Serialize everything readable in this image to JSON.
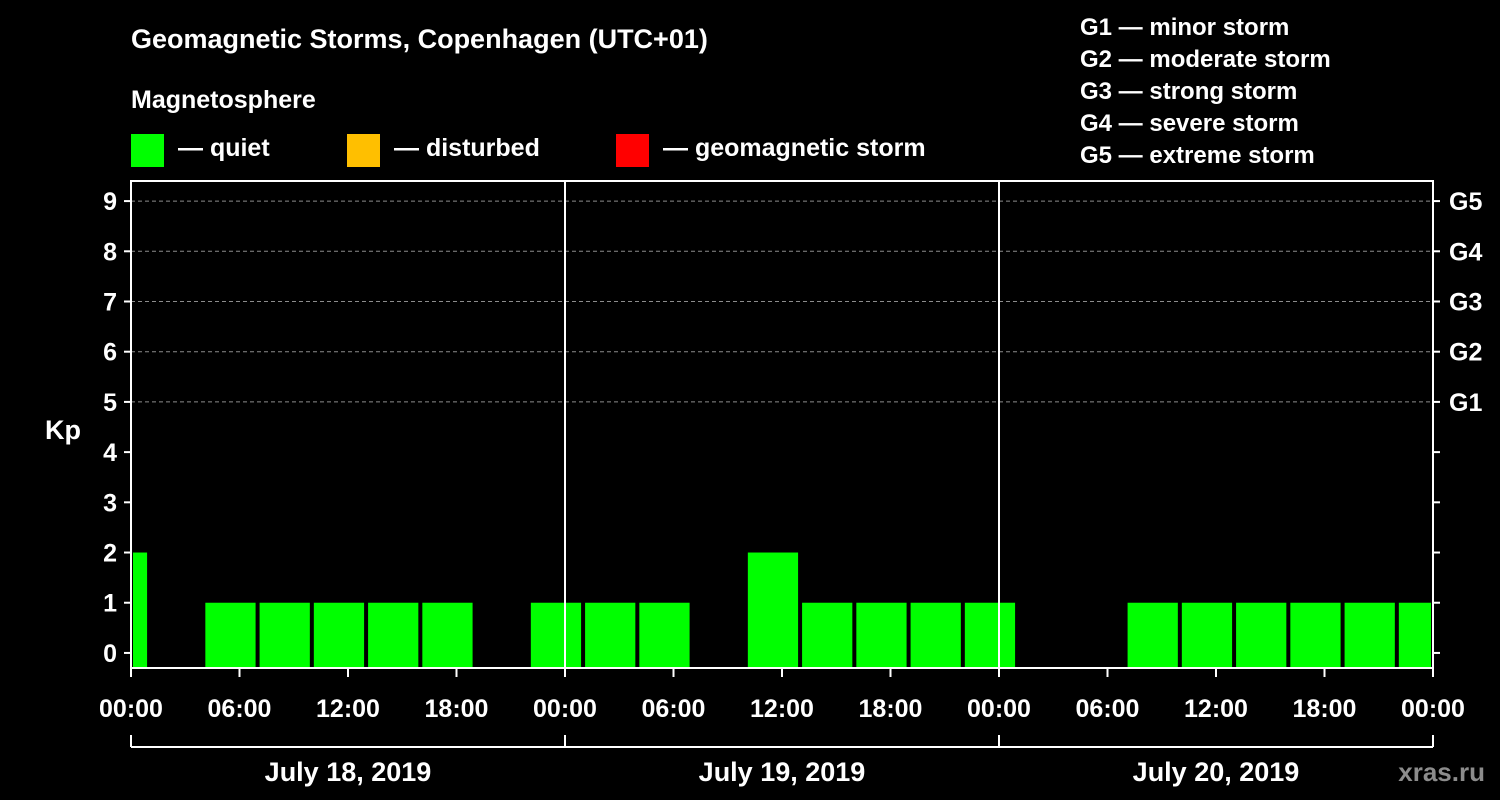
{
  "chart_data": {
    "type": "bar",
    "title": "Geomagnetic Storms, Copenhagen (UTC+01)",
    "ylabel": "Kp",
    "ylim": [
      -0.3,
      9.4
    ],
    "yticks": [
      "0",
      "1",
      "2",
      "3",
      "4",
      "5",
      "6",
      "7",
      "8",
      "9"
    ],
    "right_ticks": [
      {
        "value": 5,
        "label": "G1"
      },
      {
        "value": 6,
        "label": "G2"
      },
      {
        "value": 7,
        "label": "G3"
      },
      {
        "value": 8,
        "label": "G4"
      },
      {
        "value": 9,
        "label": "G5"
      }
    ],
    "xlim": [
      0,
      72
    ],
    "xtick_hours": [
      0,
      6,
      12,
      18,
      24,
      30,
      36,
      42,
      48,
      54,
      60,
      66,
      72
    ],
    "xtick_labels": [
      "00:00",
      "06:00",
      "12:00",
      "18:00",
      "00:00",
      "06:00",
      "12:00",
      "18:00",
      "00:00",
      "06:00",
      "12:00",
      "18:00",
      "00:00"
    ],
    "dates": [
      "July 18, 2019",
      "July 19, 2019",
      "July 20, 2019"
    ],
    "bars": [
      {
        "start": 0,
        "end": 1,
        "kp": 2
      },
      {
        "start": 4,
        "end": 7,
        "kp": 1
      },
      {
        "start": 7,
        "end": 10,
        "kp": 1
      },
      {
        "start": 10,
        "end": 13,
        "kp": 1
      },
      {
        "start": 13,
        "end": 16,
        "kp": 1
      },
      {
        "start": 16,
        "end": 19,
        "kp": 1
      },
      {
        "start": 22,
        "end": 25,
        "kp": 1
      },
      {
        "start": 25,
        "end": 28,
        "kp": 1
      },
      {
        "start": 28,
        "end": 31,
        "kp": 1
      },
      {
        "start": 34,
        "end": 37,
        "kp": 2
      },
      {
        "start": 37,
        "end": 40,
        "kp": 1
      },
      {
        "start": 40,
        "end": 43,
        "kp": 1
      },
      {
        "start": 43,
        "end": 46,
        "kp": 1
      },
      {
        "start": 46,
        "end": 49,
        "kp": 1
      },
      {
        "start": 55,
        "end": 58,
        "kp": 1
      },
      {
        "start": 58,
        "end": 61,
        "kp": 1
      },
      {
        "start": 61,
        "end": 64,
        "kp": 1
      },
      {
        "start": 64,
        "end": 67,
        "kp": 1
      },
      {
        "start": 67,
        "end": 70,
        "kp": 1
      },
      {
        "start": 70,
        "end": 72,
        "kp": 1
      }
    ],
    "grid": true
  },
  "legend": {
    "title": "Magnetosphere",
    "items": [
      {
        "label": "— quiet",
        "color": "#00ff00"
      },
      {
        "label": "— disturbed",
        "color": "#ffbf00"
      },
      {
        "label": "— geomagnetic storm",
        "color": "#ff0000"
      }
    ]
  },
  "storm_scale": [
    "G1 — minor storm",
    "G2 — moderate storm",
    "G3 — strong storm",
    "G4 — severe storm",
    "G5 — extreme storm"
  ],
  "watermark": "xras.ru",
  "colors": {
    "bar": "#00ff00",
    "axis": "#ffffff",
    "grid": "#8c8c8c",
    "background": "#000000"
  }
}
